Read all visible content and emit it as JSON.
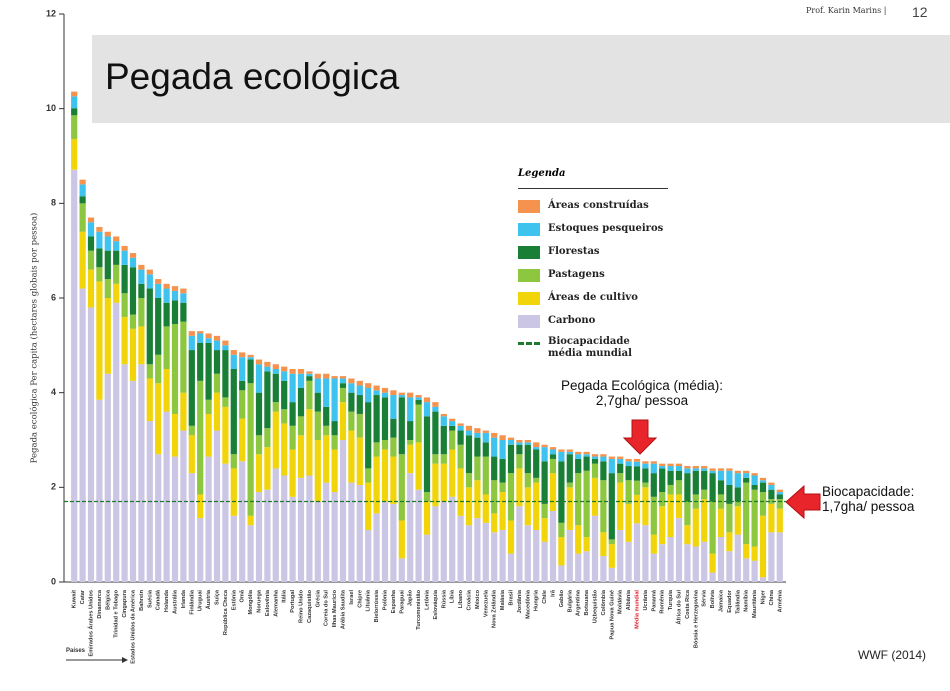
{
  "header": {
    "author": "Prof. Karin Marins |",
    "page": "12"
  },
  "slide_title": "Pegada ecológica",
  "source": "WWF (2014)",
  "chart_data": {
    "type": "stacked_bar",
    "ylabel": "Pegada ecológica Per capita (hectares globais por pessoa)",
    "xlabel": "Países",
    "legend_title": "Legenda",
    "ylim": [
      0,
      12
    ],
    "yticks": [
      0,
      2,
      4,
      6,
      8,
      10,
      12
    ],
    "highlight": {
      "category": "Média mundial",
      "color": "#e0202a"
    },
    "biocapacity": {
      "name": "Biocapacidade média mundial",
      "value": 1.7,
      "color": "#1e7a2e"
    },
    "annotations": [
      {
        "text": "Pegada Ecológica (média): 2,7gha/ pessoa"
      },
      {
        "text": "Biocapacidade: 1,7gha/ pessoa"
      }
    ],
    "categories": [
      "Kuwait",
      "Catar",
      "Emirados Árabes Unidos",
      "Dinamarca",
      "Bélgica",
      "Trinidad e Tobago",
      "Cingapura",
      "Estados Unidos da América",
      "Bahrein",
      "Suécia",
      "Canadá",
      "Holanda",
      "Austrália",
      "Irlanda",
      "Finlândia",
      "Uruguai",
      "Áustria",
      "Suíça",
      "República Checa",
      "Estônia",
      "Omã",
      "Mongólia",
      "Noruega",
      "Eslovênia",
      "Alemanha",
      "Itália",
      "Portugal",
      "Reino Unido",
      "Cazaquistão",
      "Grécia",
      "Coreia do Sul",
      "Ilhas Maurício",
      "Arábia Saudita",
      "Israel",
      "Chipre",
      "Lituânia",
      "Bielorrússia",
      "Polônia",
      "Espanha",
      "Paraguai",
      "Japão",
      "Turcomenistão",
      "Letônia",
      "Eslováquia",
      "Rússia",
      "Líbia",
      "Líbano",
      "Croácia",
      "México",
      "Venezuela",
      "Nova Zelândia",
      "Malásia",
      "Brasil",
      "Jordânia",
      "Macedônia",
      "Hungria",
      "Chile",
      "Irã",
      "Gabão",
      "Bulgária",
      "Argentina",
      "Botsuana",
      "Uzbequistão",
      "Colômbia",
      "Papua Nova Guiné",
      "Moldávia",
      "Albânia",
      "Média mundial",
      "Ucrânia",
      "Panamá",
      "Romênia",
      "Turquia",
      "África do Sul",
      "Costa Rica",
      "Bósnia e Herzegovina",
      "Sérvia",
      "Bolívia",
      "Jamaica",
      "Equador",
      "Tailândia",
      "Namíbia",
      "Mauritânia",
      "Níger",
      "China",
      "Armênia"
    ],
    "series": [
      {
        "name": "Áreas construídas",
        "color": "#f4924e",
        "values": [
          0.1,
          0.1,
          0.1,
          0.1,
          0.1,
          0.1,
          0.1,
          0.1,
          0.1,
          0.1,
          0.1,
          0.1,
          0.1,
          0.1,
          0.1,
          0.05,
          0.1,
          0.1,
          0.1,
          0.1,
          0.1,
          0.05,
          0.1,
          0.1,
          0.1,
          0.1,
          0.1,
          0.1,
          0.05,
          0.1,
          0.1,
          0.05,
          0.05,
          0.1,
          0.1,
          0.1,
          0.1,
          0.1,
          0.1,
          0.05,
          0.1,
          0.05,
          0.1,
          0.1,
          0.05,
          0.05,
          0.05,
          0.1,
          0.1,
          0.05,
          0.1,
          0.1,
          0.05,
          0.05,
          0.05,
          0.1,
          0.05,
          0.05,
          0.05,
          0.05,
          0.05,
          0.05,
          0.05,
          0.05,
          0.05,
          0.05,
          0.05,
          0.06,
          0.05,
          0.05,
          0.05,
          0.05,
          0.05,
          0.05,
          0.05,
          0.05,
          0.05,
          0.05,
          0.05,
          0.05,
          0.05,
          0.05,
          0.05,
          0.05,
          0.05
        ]
      },
      {
        "name": "Estoques pesqueiros",
        "color": "#3ec3ef",
        "values": [
          0.25,
          0.25,
          0.3,
          0.35,
          0.3,
          0.2,
          0.3,
          0.2,
          0.3,
          0.3,
          0.3,
          0.3,
          0.2,
          0.2,
          0.3,
          0.2,
          0.1,
          0.2,
          0.1,
          0.3,
          0.5,
          0.05,
          0.6,
          0.1,
          0.1,
          0.2,
          0.6,
          0.3,
          0.05,
          0.3,
          0.6,
          0.9,
          0.1,
          0.2,
          0.2,
          0.3,
          0.1,
          0.1,
          0.5,
          0.05,
          0.5,
          0.05,
          0.3,
          0.1,
          0.2,
          0.1,
          0.1,
          0.1,
          0.1,
          0.2,
          0.4,
          0.4,
          0.1,
          0.05,
          0.05,
          0.05,
          0.3,
          0.1,
          0.2,
          0.05,
          0.1,
          0.05,
          0.05,
          0.1,
          0.3,
          0.1,
          0.1,
          0.1,
          0.1,
          0.2,
          0.05,
          0.1,
          0.1,
          0.1,
          0.05,
          0.05,
          0.05,
          0.2,
          0.3,
          0.3,
          0.1,
          0.2,
          0.05,
          0.1,
          0.05
        ]
      },
      {
        "name": "Florestas",
        "color": "#1a7f36",
        "values": [
          0.15,
          0.15,
          0.3,
          0.4,
          0.6,
          0.3,
          0.6,
          1.0,
          0.3,
          1.6,
          1.2,
          0.5,
          0.5,
          0.4,
          1.6,
          0.8,
          1.2,
          0.5,
          1.0,
          1.8,
          0.2,
          0.5,
          0.9,
          1.2,
          0.6,
          0.6,
          0.5,
          0.6,
          0.1,
          0.4,
          0.4,
          0.3,
          0.1,
          0.4,
          0.4,
          1.4,
          1.0,
          0.9,
          0.4,
          1.2,
          0.4,
          0.1,
          1.6,
          0.9,
          0.6,
          0.1,
          0.3,
          0.8,
          0.4,
          0.3,
          0.5,
          0.5,
          0.6,
          0.2,
          0.6,
          0.6,
          0.9,
          0.1,
          1.3,
          0.6,
          0.3,
          0.3,
          0.1,
          0.4,
          1.4,
          0.2,
          0.3,
          0.3,
          0.3,
          0.5,
          0.5,
          0.3,
          0.2,
          0.6,
          0.5,
          0.4,
          0.6,
          0.3,
          0.4,
          0.3,
          0.1,
          0.1,
          0.2,
          0.2,
          0.1
        ]
      },
      {
        "name": "Pastagens",
        "color": "#8dc63f",
        "values": [
          0.5,
          0.6,
          0.4,
          0.3,
          0.4,
          0.4,
          0.5,
          0.3,
          0.6,
          0.3,
          0.6,
          0.9,
          1.9,
          1.5,
          0.2,
          2.4,
          0.3,
          0.4,
          0.2,
          0.3,
          0.6,
          2.8,
          0.4,
          0.4,
          0.2,
          0.3,
          0.5,
          0.4,
          0.6,
          0.6,
          0.2,
          0.3,
          0.3,
          0.4,
          0.5,
          0.3,
          0.3,
          0.2,
          0.4,
          1.4,
          0.1,
          0.8,
          0.2,
          0.2,
          0.2,
          0.4,
          0.5,
          0.3,
          0.5,
          0.8,
          0.7,
          0.2,
          1.0,
          0.3,
          0.3,
          0.1,
          0.3,
          0.3,
          0.3,
          0.1,
          1.1,
          1.4,
          0.3,
          1.1,
          0.1,
          0.2,
          0.5,
          0.3,
          0.1,
          0.8,
          0.3,
          0.2,
          0.3,
          0.5,
          0.3,
          0.2,
          1.1,
          0.3,
          0.6,
          0.1,
          1.3,
          1.2,
          0.5,
          0.1,
          0.2
        ]
      },
      {
        "name": "Áreas de cultivo",
        "color": "#f2d40a",
        "values": [
          0.65,
          1.2,
          0.8,
          2.5,
          1.6,
          0.4,
          1.0,
          1.1,
          0.8,
          0.9,
          1.5,
          0.9,
          0.9,
          0.8,
          0.8,
          0.5,
          0.9,
          0.8,
          1.2,
          1.0,
          0.9,
          0.2,
          0.8,
          0.9,
          1.2,
          1.1,
          1.0,
          0.9,
          1.4,
          1.3,
          1.0,
          0.9,
          0.8,
          1.1,
          1.0,
          1.0,
          1.2,
          1.1,
          1.0,
          0.8,
          0.6,
          1.0,
          0.7,
          0.9,
          0.8,
          1.0,
          1.0,
          0.8,
          0.8,
          0.6,
          0.4,
          0.8,
          0.7,
          0.8,
          0.8,
          1.0,
          0.5,
          0.8,
          0.6,
          0.9,
          0.6,
          0.3,
          0.8,
          0.5,
          0.5,
          1.0,
          0.8,
          0.6,
          0.8,
          0.4,
          0.8,
          0.9,
          0.5,
          0.4,
          0.8,
          0.9,
          0.4,
          0.6,
          0.4,
          0.6,
          0.3,
          0.3,
          1.3,
          0.6,
          0.5
        ]
      },
      {
        "name": "Carbono",
        "color": "#cbc6e4",
        "values": [
          8.71,
          6.2,
          5.8,
          3.85,
          4.4,
          5.9,
          4.6,
          4.25,
          4.6,
          3.4,
          2.7,
          3.6,
          2.65,
          3.2,
          2.3,
          1.35,
          2.65,
          3.2,
          2.5,
          1.4,
          2.55,
          1.2,
          1.9,
          1.95,
          2.4,
          2.25,
          1.8,
          2.2,
          2.25,
          1.7,
          2.1,
          1.9,
          3.0,
          2.1,
          2.05,
          1.1,
          1.45,
          1.7,
          1.65,
          0.5,
          2.3,
          1.95,
          1.0,
          1.6,
          1.7,
          1.8,
          1.4,
          1.2,
          1.35,
          1.25,
          1.05,
          1.1,
          0.6,
          1.6,
          1.2,
          1.1,
          0.85,
          1.5,
          0.35,
          1.1,
          0.6,
          0.65,
          1.4,
          0.55,
          0.3,
          1.1,
          0.85,
          1.24,
          1.2,
          0.6,
          0.8,
          0.95,
          1.35,
          0.8,
          0.75,
          0.85,
          0.2,
          0.95,
          0.65,
          1.0,
          0.5,
          0.45,
          0.1,
          1.05,
          1.05
        ]
      }
    ]
  }
}
